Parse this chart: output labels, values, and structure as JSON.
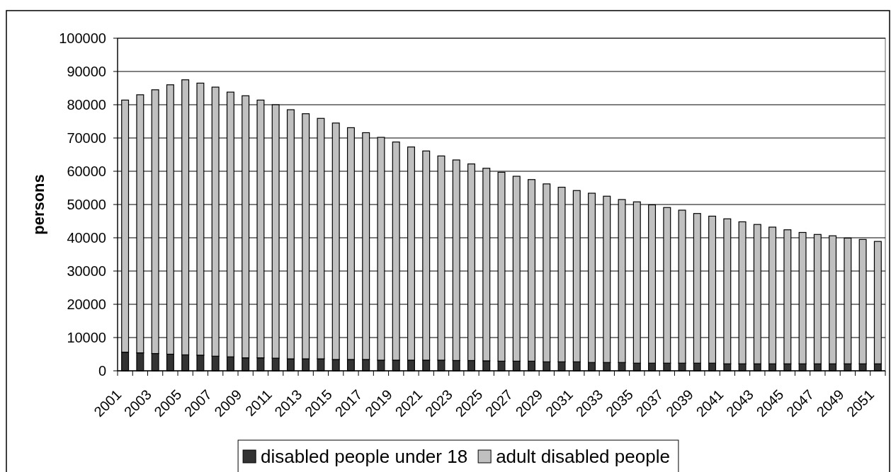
{
  "chart_data": {
    "type": "bar",
    "stacked": true,
    "ylabel": "persons",
    "categories": [
      "2001",
      null,
      "2003",
      null,
      "2005",
      null,
      "2007",
      null,
      "2009",
      null,
      "2011",
      null,
      "2013",
      null,
      "2015",
      null,
      "2017",
      null,
      "2019",
      null,
      "2021",
      null,
      "2023",
      null,
      "2025",
      null,
      "2027",
      null,
      "2029",
      null,
      "2031",
      null,
      "2033",
      null,
      "2035",
      null,
      "2037",
      null,
      "2039",
      null,
      "2041",
      null,
      "2043",
      null,
      "2045",
      null,
      "2047",
      null,
      "2049",
      null,
      "2051"
    ],
    "series": [
      {
        "name": "disabled people under 18",
        "color": "#333333",
        "values": [
          5600,
          5400,
          5200,
          5000,
          4800,
          4700,
          4400,
          4200,
          3900,
          3900,
          3800,
          3600,
          3600,
          3600,
          3400,
          3400,
          3400,
          3200,
          3200,
          3200,
          3200,
          3200,
          3100,
          3100,
          3000,
          2900,
          2900,
          2900,
          2700,
          2700,
          2700,
          2500,
          2500,
          2500,
          2300,
          2300,
          2300,
          2300,
          2300,
          2300,
          2100,
          2100,
          2100,
          2100,
          2100,
          2100,
          2100,
          2100,
          2100,
          2100,
          2100
        ]
      },
      {
        "name": "adult disabled people",
        "color": "#c0c0c0",
        "values": [
          75800,
          77600,
          79300,
          81000,
          82700,
          81800,
          80900,
          79600,
          78800,
          77500,
          76200,
          74900,
          73700,
          72300,
          71100,
          69700,
          68200,
          67000,
          65600,
          64100,
          62900,
          61400,
          60300,
          59100,
          57900,
          56800,
          55600,
          54600,
          53500,
          52500,
          51500,
          50900,
          50000,
          49000,
          48500,
          47600,
          46800,
          46000,
          45000,
          44200,
          43600,
          42700,
          41900,
          41100,
          40300,
          39500,
          38900,
          38500,
          37800,
          37400,
          36800
        ]
      }
    ],
    "ylim": [
      0,
      100000
    ],
    "yticks": [
      0,
      10000,
      20000,
      30000,
      40000,
      50000,
      60000,
      70000,
      80000,
      90000,
      100000
    ],
    "grid": "y",
    "legend": "bottom"
  }
}
